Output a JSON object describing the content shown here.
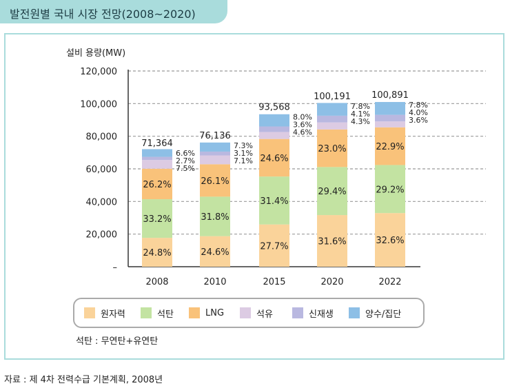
{
  "title": "발전원별 국내 시장 전망(2008~2020)",
  "note": "석탄 : 무연탄+유연탄",
  "source": "자료 : 제 4차 전력수급 기본계획, 2008년",
  "chart_data": {
    "type": "bar",
    "stacked": true,
    "title": "",
    "ylabel": "설비 용량(MW)",
    "xlabel": "",
    "ylim": [
      0,
      120000
    ],
    "yticks": [
      "120,000",
      "100,000",
      "80,000",
      "60,000",
      "40,000",
      "20,000",
      "–"
    ],
    "ytick_values": [
      120000,
      100000,
      80000,
      60000,
      40000,
      20000,
      0
    ],
    "grid": true,
    "legend_position": "bottom",
    "categories": [
      "2008",
      "2010",
      "2015",
      "2020",
      "2022"
    ],
    "totals": [
      71364,
      76136,
      93568,
      100191,
      100891
    ],
    "total_labels": [
      "71,364",
      "76,136",
      "93,568",
      "100,191",
      "100,891"
    ],
    "series": [
      {
        "name": "원자력",
        "color": "#fad39a",
        "percents": [
          24.8,
          24.6,
          27.7,
          31.6,
          32.6
        ],
        "labels": [
          "24.8%",
          "24.6%",
          "27.7%",
          "31.6%",
          "32.6%"
        ]
      },
      {
        "name": "석탄",
        "color": "#c3e3a2",
        "percents": [
          33.2,
          31.8,
          31.4,
          29.4,
          29.2
        ],
        "labels": [
          "33.2%",
          "31.8%",
          "31.4%",
          "29.4%",
          "29.2%"
        ]
      },
      {
        "name": "LNG",
        "color": "#f9c27a",
        "percents": [
          26.2,
          26.1,
          24.6,
          23.0,
          22.9
        ],
        "labels": [
          "26.2%",
          "26.1%",
          "24.6%",
          "23.0%",
          "22.9%"
        ]
      },
      {
        "name": "석유",
        "color": "#dccbe3",
        "percents": [
          7.5,
          7.1,
          4.6,
          4.3,
          3.6
        ],
        "labels": [
          "7.5%",
          "7.1%",
          "4.6%",
          "4.3%",
          "3.6%"
        ]
      },
      {
        "name": "신재생",
        "color": "#b9b8e0",
        "percents": [
          2.7,
          3.1,
          3.6,
          4.1,
          4.0
        ],
        "labels": [
          "2.7%",
          "3.1%",
          "3.6%",
          "4.1%",
          "4.0%"
        ]
      },
      {
        "name": "양수/집단",
        "color": "#8dbfe6",
        "percents": [
          6.6,
          7.3,
          8.0,
          7.8,
          7.8
        ],
        "labels": [
          "6.6%",
          "7.3%",
          "8.0%",
          "7.8%",
          "7.8%"
        ]
      }
    ]
  }
}
